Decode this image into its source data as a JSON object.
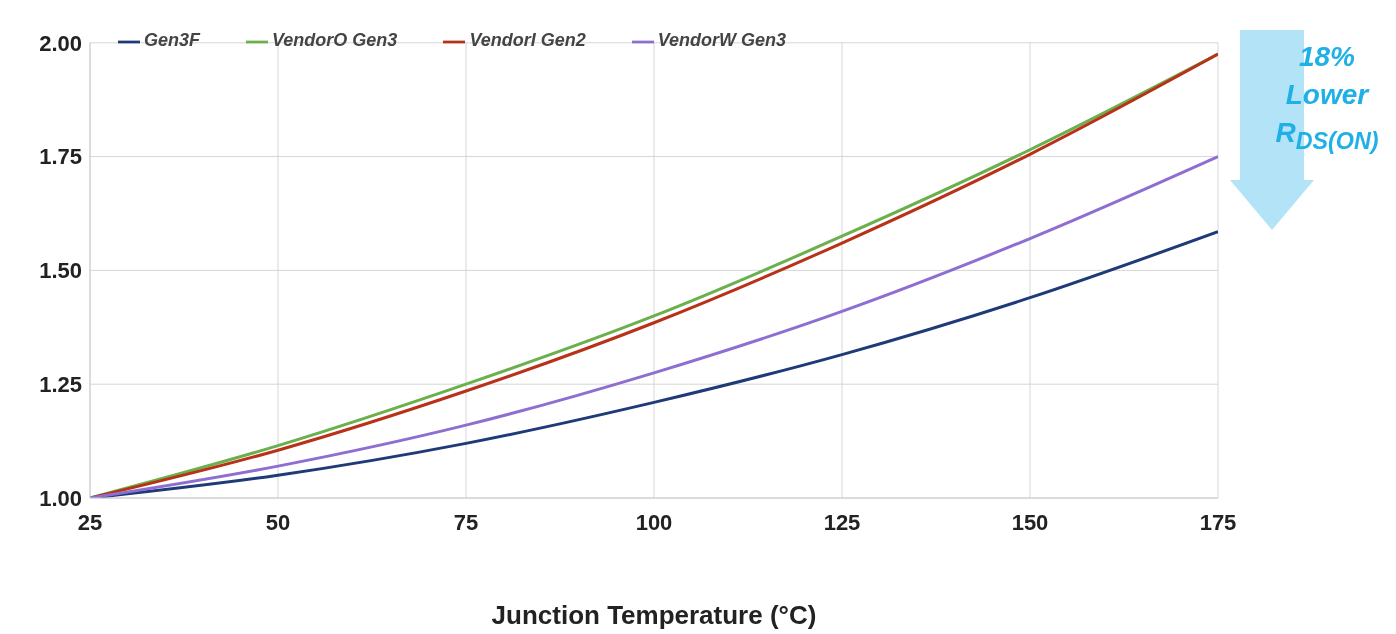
{
  "chart_data": {
    "type": "line",
    "xlabel": "Junction Temperature (°C)",
    "x": [
      25,
      50,
      75,
      100,
      125,
      150,
      175
    ],
    "series": [
      {
        "name": "Gen3F",
        "color": "#1f3a78",
        "values": [
          1.0,
          1.05,
          1.12,
          1.21,
          1.315,
          1.44,
          1.585
        ]
      },
      {
        "name": "VendorO Gen3",
        "color": "#6ab04c",
        "values": [
          1.0,
          1.115,
          1.25,
          1.4,
          1.575,
          1.765,
          1.975
        ]
      },
      {
        "name": "VendorI Gen2",
        "color": "#b8321a",
        "values": [
          1.0,
          1.105,
          1.235,
          1.385,
          1.56,
          1.755,
          1.975
        ]
      },
      {
        "name": "VendorW Gen3",
        "color": "#8e6fd1",
        "values": [
          1.0,
          1.07,
          1.16,
          1.275,
          1.41,
          1.57,
          1.75
        ]
      }
    ],
    "xlim": [
      25,
      175
    ],
    "xticks": [
      25,
      50,
      75,
      100,
      125,
      150,
      175
    ],
    "ylim": [
      1.0,
      2.0
    ],
    "yticks": [
      {
        "value": 1.0,
        "label": "1.00"
      },
      {
        "value": 1.25,
        "label": "1.25"
      },
      {
        "value": 1.5,
        "label": "1.50"
      },
      {
        "value": 1.75,
        "label": "1.75"
      },
      {
        "value": 2.0,
        "label": "2.00"
      }
    ],
    "grid": true,
    "legend": "top left",
    "marker": "none",
    "line_style": "solid",
    "annotations": [
      "18% Lower R$_{DS(ON)}$"
    ]
  }
}
